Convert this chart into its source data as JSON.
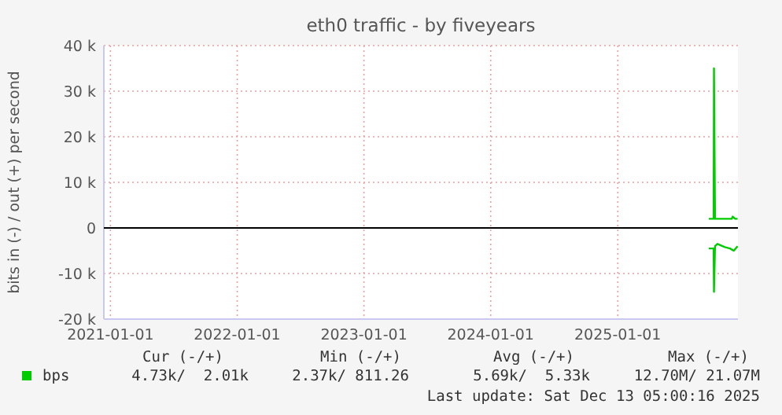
{
  "chart_data": {
    "type": "line",
    "title": "eth0 traffic - by fiveyears",
    "ylabel": "bits in (-) / out (+) per second",
    "xlim": [
      "2020-12-13",
      "2025-12-13"
    ],
    "xticks": [
      "2021-01-01",
      "2022-01-01",
      "2023-01-01",
      "2024-01-01",
      "2025-01-01"
    ],
    "ylim": [
      -20000,
      40000
    ],
    "yticks": [
      {
        "value": -20000,
        "label": "-20 k"
      },
      {
        "value": -10000,
        "label": "-10 k"
      },
      0,
      {
        "value": 10000,
        "label": "10 k"
      },
      {
        "value": 20000,
        "label": "20 k"
      },
      {
        "value": 30000,
        "label": "30 k"
      },
      {
        "value": 40000,
        "label": "40 k"
      }
    ],
    "grid": true,
    "legend": "bottom left",
    "ref_lines": [
      {
        "axis": "y",
        "value": 0,
        "color": "#000000"
      }
    ],
    "series": [
      {
        "name": "bps",
        "color": "#00cc00",
        "x": [
          "2025-09-20",
          "2025-10-04",
          "2025-10-05",
          "2025-10-08",
          "2025-11-01",
          "2025-11-25",
          "2025-11-28",
          "2025-12-05",
          "2025-12-12"
        ],
        "values": [
          2000,
          2000,
          35000,
          2000,
          2000,
          2000,
          2500,
          2000,
          2000
        ]
      },
      {
        "color": "#00cc00",
        "x": [
          "2025-09-20",
          "2025-10-04",
          "2025-10-05",
          "2025-10-08",
          "2025-10-15",
          "2025-11-05",
          "2025-11-20",
          "2025-12-01",
          "2025-12-12"
        ],
        "values": [
          -4500,
          -4500,
          -14000,
          -4000,
          -3500,
          -4200,
          -4500,
          -5000,
          -4000
        ]
      }
    ],
    "annotations": [
      "Cur (-/+)",
      "Min (-/+)",
      "Avg (-/+)",
      "Max (-/+)",
      "4.73k/  2.01k",
      "2.37k/ 811.26",
      "5.69k/  5.33k",
      "12.70M/ 21.07M",
      "Last update: Sat Dec 13 05:00:16 2025"
    ]
  }
}
